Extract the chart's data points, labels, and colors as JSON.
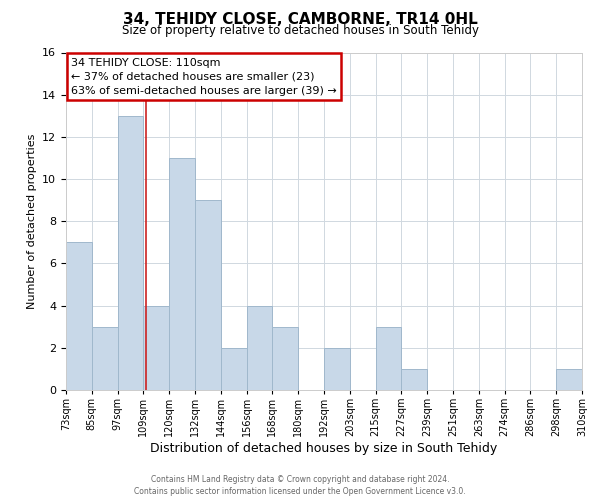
{
  "title": "34, TEHIDY CLOSE, CAMBORNE, TR14 0HL",
  "subtitle": "Size of property relative to detached houses in South Tehidy",
  "xlabel": "Distribution of detached houses by size in South Tehidy",
  "ylabel": "Number of detached properties",
  "bar_color": "#c8d8e8",
  "bar_edge_color": "#a0b8cc",
  "bins": [
    "73sqm",
    "85sqm",
    "97sqm",
    "109sqm",
    "120sqm",
    "132sqm",
    "144sqm",
    "156sqm",
    "168sqm",
    "180sqm",
    "192sqm",
    "203sqm",
    "215sqm",
    "227sqm",
    "239sqm",
    "251sqm",
    "263sqm",
    "274sqm",
    "286sqm",
    "298sqm",
    "310sqm"
  ],
  "values": [
    7,
    3,
    13,
    4,
    11,
    9,
    2,
    4,
    3,
    0,
    2,
    0,
    3,
    1,
    0,
    0,
    0,
    0,
    0,
    1
  ],
  "ylim": [
    0,
    16
  ],
  "yticks": [
    0,
    2,
    4,
    6,
    8,
    10,
    12,
    14,
    16
  ],
  "annotation_title": "34 TEHIDY CLOSE: 110sqm",
  "annotation_line1": "← 37% of detached houses are smaller (23)",
  "annotation_line2": "63% of semi-detached houses are larger (39) →",
  "annotation_box_color": "#ffffff",
  "annotation_box_edge": "#cc0000",
  "vline_color": "#cc2222",
  "vline_x": 3.09,
  "footer_line1": "Contains HM Land Registry data © Crown copyright and database right 2024.",
  "footer_line2": "Contains public sector information licensed under the Open Government Licence v3.0.",
  "background_color": "#ffffff",
  "grid_color": "#d0d8e0"
}
